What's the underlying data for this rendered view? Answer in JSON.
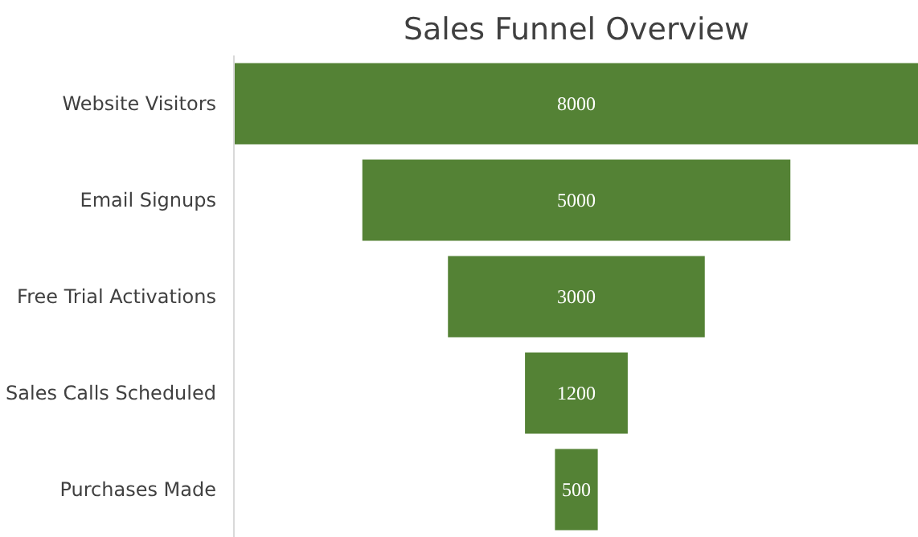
{
  "chart_data": {
    "type": "other",
    "title": "Sales Funnel Overview",
    "categories": [
      "Website Visitors",
      "Email Signups",
      "Free Trial Activations",
      "Sales Calls Scheduled",
      "Purchases Made"
    ],
    "values": [
      8000,
      5000,
      3000,
      1200,
      500
    ],
    "color": "#548235",
    "data_labels": true
  }
}
